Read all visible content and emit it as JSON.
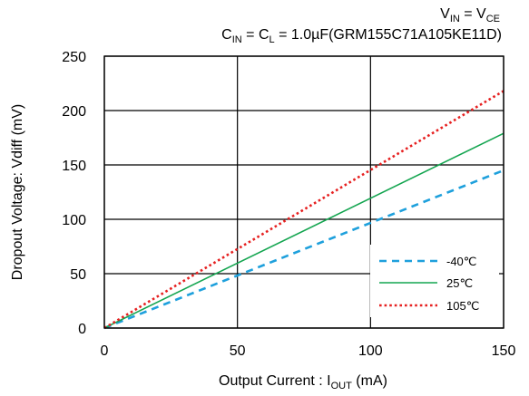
{
  "chart_data": {
    "type": "line",
    "annotations": {
      "line1": {
        "main": "V",
        "sub1": "IN",
        "mid": " = V",
        "sub2": "CE"
      },
      "line2": {
        "a": "C",
        "a_sub": "IN",
        "b": " = C",
        "b_sub": "L",
        "rest": " = 1.0µF(GRM155C71A105KE11D)"
      }
    },
    "xlabel": {
      "main": "Output Current : I",
      "sub": "OUT",
      "tail": "  (mA)"
    },
    "ylabel": "Dropout Voltage: Vdiff (mV)",
    "xlim": [
      0,
      150
    ],
    "ylim": [
      0,
      250
    ],
    "x_ticks": [
      "0",
      "50",
      "100",
      "150"
    ],
    "y_ticks": [
      "0",
      "50",
      "100",
      "150",
      "200",
      "250"
    ],
    "grid": true,
    "legend_position": "bottom-right",
    "series": [
      {
        "name": "-40℃",
        "color": "#1ea0dc",
        "dash": "8 6",
        "width": 2.6,
        "x": [
          0,
          150
        ],
        "y": [
          0,
          145
        ]
      },
      {
        "name": "25℃",
        "color": "#14a550",
        "dash": "",
        "width": 1.6,
        "x": [
          0,
          150
        ],
        "y": [
          0,
          179
        ]
      },
      {
        "name": "105℃",
        "color": "#e62020",
        "dash": "2.6 3",
        "width": 2.6,
        "x": [
          0,
          150
        ],
        "y": [
          0,
          218
        ]
      }
    ]
  }
}
